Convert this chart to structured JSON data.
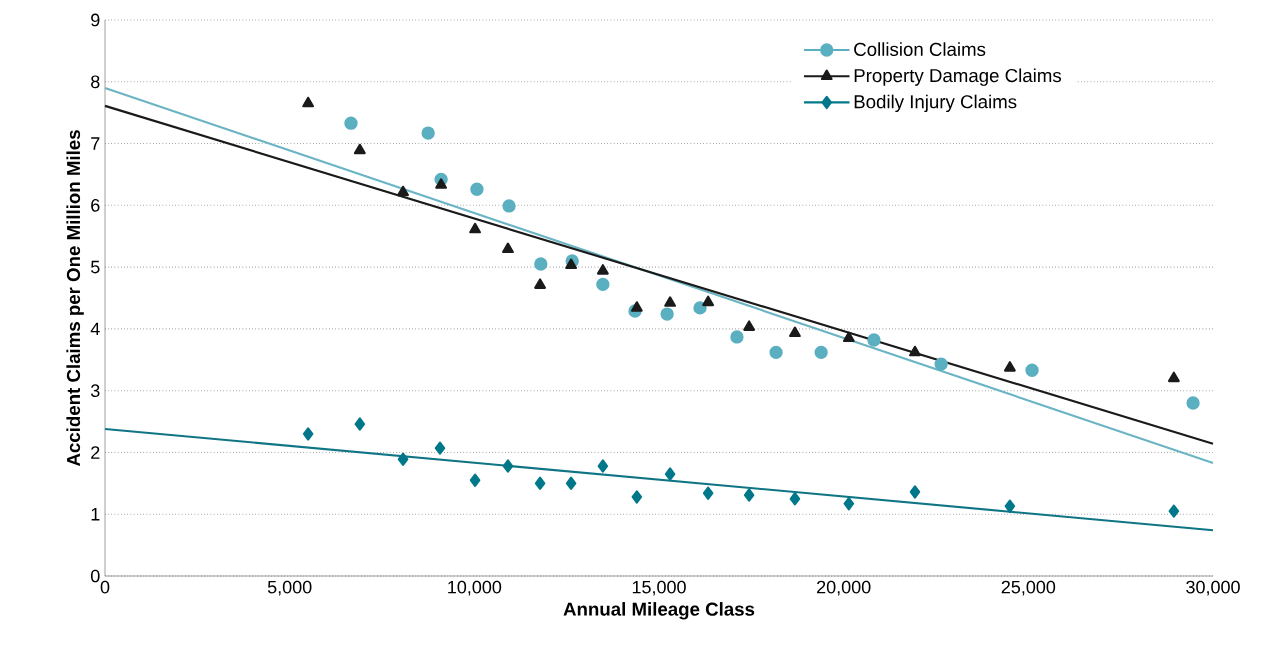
{
  "chart_data": {
    "type": "scatter",
    "xlabel": "Annual Mileage Class",
    "ylabel": "Accident Claims per One Million Miles",
    "xlim": [
      0,
      30000
    ],
    "ylim": [
      0,
      9
    ],
    "xticks": [
      0,
      {
        "value": 5000,
        "label": "5,000"
      },
      {
        "value": 10000,
        "label": "10,000"
      },
      {
        "value": 15000,
        "label": "15,000"
      },
      {
        "value": 20000,
        "label": "20,000"
      },
      {
        "value": 25000,
        "label": "25,000"
      },
      {
        "value": 30000,
        "label": "30,000"
      }
    ],
    "yticks": [
      0,
      1,
      2,
      3,
      4,
      5,
      6,
      7,
      8,
      9
    ],
    "grid": "y",
    "legend": "top right",
    "line_style": "solid",
    "series": [
      {
        "name": "Collision Claims",
        "type": "scatter",
        "marker": "circle",
        "color": "#5aafc0",
        "x": [
          6660,
          8750,
          9100,
          10070,
          10940,
          11800,
          12650,
          13480,
          14350,
          15220,
          16110,
          17110,
          18170,
          19390,
          20820,
          22640,
          25100,
          29460
        ],
        "values": [
          7.33,
          7.17,
          6.42,
          6.26,
          5.99,
          5.05,
          5.1,
          4.72,
          4.29,
          4.24,
          4.34,
          3.87,
          3.62,
          3.62,
          3.82,
          3.43,
          3.33,
          2.8
        ]
      },
      {
        "name": "Property Damage Claims",
        "type": "scatter",
        "marker": "triangle",
        "color": "#1a1a1a",
        "x": [
          5500,
          6900,
          8070,
          9100,
          10020,
          10910,
          11780,
          12620,
          13480,
          14400,
          15300,
          16330,
          17440,
          18680,
          20140,
          21930,
          24500,
          28940
        ],
        "values": [
          7.65,
          6.89,
          6.21,
          6.33,
          5.61,
          5.29,
          4.71,
          5.03,
          4.94,
          4.34,
          4.42,
          4.43,
          4.03,
          3.93,
          3.85,
          3.62,
          3.37,
          3.2
        ]
      },
      {
        "name": "Bodily Injury Claims",
        "type": "scatter",
        "marker": "diamond",
        "color": "#00788a",
        "x": [
          5500,
          6900,
          8070,
          9070,
          10020,
          10910,
          11780,
          12620,
          13480,
          14400,
          15300,
          16330,
          17440,
          18680,
          20140,
          21930,
          24500,
          28940
        ],
        "values": [
          2.3,
          2.46,
          1.89,
          2.07,
          1.55,
          1.78,
          1.5,
          1.5,
          1.78,
          1.28,
          1.65,
          1.34,
          1.31,
          1.25,
          1.17,
          1.36,
          1.13,
          1.05
        ]
      },
      {
        "type": "line",
        "marker": "none",
        "color": "#6bb4c4",
        "x": [
          0,
          30000
        ],
        "values": [
          7.9,
          1.83
        ]
      },
      {
        "type": "line",
        "marker": "none",
        "color": "#1a1a1a",
        "x": [
          0,
          30000
        ],
        "values": [
          7.61,
          2.14
        ]
      },
      {
        "type": "line",
        "marker": "none",
        "color": "#0f7585",
        "x": [
          0,
          30000
        ],
        "values": [
          2.38,
          0.74
        ]
      }
    ]
  }
}
